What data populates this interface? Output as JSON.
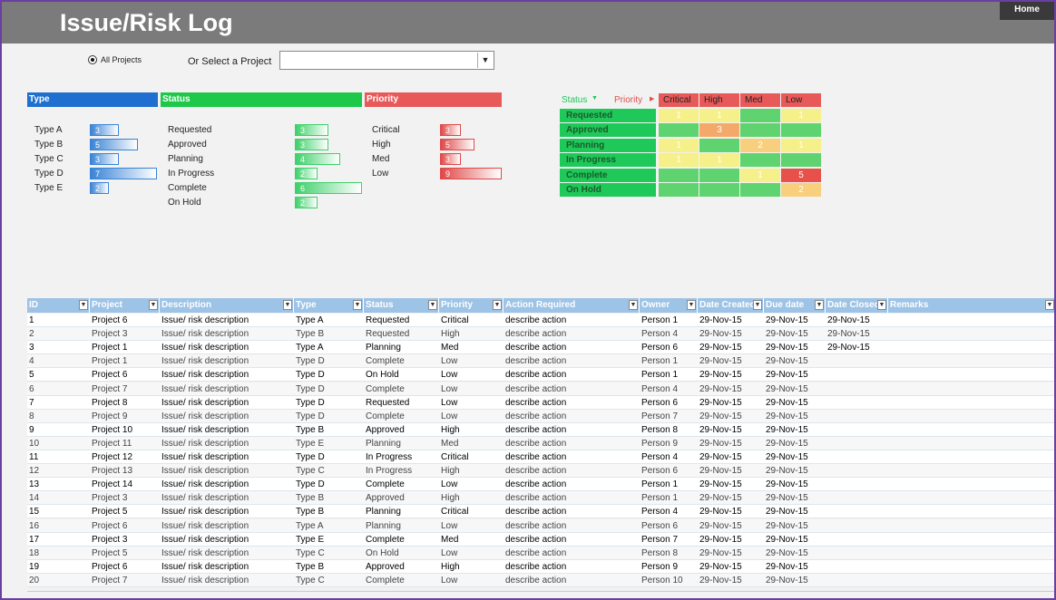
{
  "header": {
    "title": "Issue/Risk Log",
    "home_button": "Home"
  },
  "filter": {
    "all_projects": "All Projects",
    "select_label": "Or Select a Project"
  },
  "summary": {
    "type": {
      "title": "Type",
      "items": [
        {
          "label": "Type A",
          "count": 3
        },
        {
          "label": "Type B",
          "count": 5
        },
        {
          "label": "Type C",
          "count": 3
        },
        {
          "label": "Type D",
          "count": 7
        },
        {
          "label": "Type E",
          "count": 2
        }
      ]
    },
    "status": {
      "title": "Status",
      "items": [
        {
          "label": "Requested",
          "count": 3
        },
        {
          "label": "Approved",
          "count": 3
        },
        {
          "label": "Planning",
          "count": 4
        },
        {
          "label": "In Progress",
          "count": 2
        },
        {
          "label": "Complete",
          "count": 6
        },
        {
          "label": "On Hold",
          "count": 2
        }
      ]
    },
    "priority": {
      "title": "Priority",
      "items": [
        {
          "label": "Critical",
          "count": 3
        },
        {
          "label": "High",
          "count": 5
        },
        {
          "label": "Med",
          "count": 3
        },
        {
          "label": "Low",
          "count": 9
        }
      ]
    }
  },
  "matrix": {
    "status_label": "Status",
    "priority_label": "Priority",
    "columns": [
      "Critical",
      "High",
      "Med",
      "Low"
    ],
    "rows": [
      {
        "label": "Requested",
        "values": [
          1,
          1,
          null,
          1
        ]
      },
      {
        "label": "Approved",
        "values": [
          null,
          3,
          null,
          null
        ]
      },
      {
        "label": "Planning",
        "values": [
          1,
          null,
          2,
          1
        ]
      },
      {
        "label": "In Progress",
        "values": [
          1,
          1,
          null,
          null
        ]
      },
      {
        "label": "Complete",
        "values": [
          null,
          null,
          1,
          5
        ]
      },
      {
        "label": "On Hold",
        "values": [
          null,
          null,
          null,
          2
        ]
      }
    ]
  },
  "table": {
    "columns": [
      "ID",
      "Project",
      "Description",
      "Type",
      "Status",
      "Priority",
      "Action Required",
      "Owner",
      "Date Created",
      "Due date",
      "Date Closed",
      "Remarks"
    ],
    "rows": [
      [
        1,
        "Project 6",
        "Issue/ risk description",
        "Type A",
        "Requested",
        "Critical",
        "describe action",
        "Person 1",
        "29-Nov-15",
        "29-Nov-15",
        "29-Nov-15"
      ],
      [
        2,
        "Project 3",
        "Issue/ risk description",
        "Type B",
        "Requested",
        "High",
        "describe action",
        "Person 4",
        "29-Nov-15",
        "29-Nov-15",
        "29-Nov-15"
      ],
      [
        3,
        "Project 1",
        "Issue/ risk description",
        "Type A",
        "Planning",
        "Med",
        "describe action",
        "Person 6",
        "29-Nov-15",
        "29-Nov-15",
        "29-Nov-15"
      ],
      [
        4,
        "Project 1",
        "Issue/ risk description",
        "Type D",
        "Complete",
        "Low",
        "describe action",
        "Person 1",
        "29-Nov-15",
        "29-Nov-15",
        null
      ],
      [
        5,
        "Project 6",
        "Issue/ risk description",
        "Type D",
        "On Hold",
        "Low",
        "describe action",
        "Person 1",
        "29-Nov-15",
        "29-Nov-15",
        null
      ],
      [
        6,
        "Project 7",
        "Issue/ risk description",
        "Type D",
        "Complete",
        "Low",
        "describe action",
        "Person 4",
        "29-Nov-15",
        "29-Nov-15",
        null
      ],
      [
        7,
        "Project 8",
        "Issue/ risk description",
        "Type D",
        "Requested",
        "Low",
        "describe action",
        "Person 6",
        "29-Nov-15",
        "29-Nov-15",
        null
      ],
      [
        8,
        "Project 9",
        "Issue/ risk description",
        "Type D",
        "Complete",
        "Low",
        "describe action",
        "Person 7",
        "29-Nov-15",
        "29-Nov-15",
        null
      ],
      [
        9,
        "Project 10",
        "Issue/ risk description",
        "Type B",
        "Approved",
        "High",
        "describe action",
        "Person 8",
        "29-Nov-15",
        "29-Nov-15",
        null
      ],
      [
        10,
        "Project 11",
        "Issue/ risk description",
        "Type E",
        "Planning",
        "Med",
        "describe action",
        "Person 9",
        "29-Nov-15",
        "29-Nov-15",
        null
      ],
      [
        11,
        "Project 12",
        "Issue/ risk description",
        "Type D",
        "In Progress",
        "Critical",
        "describe action",
        "Person 4",
        "29-Nov-15",
        "29-Nov-15",
        null
      ],
      [
        12,
        "Project 13",
        "Issue/ risk description",
        "Type C",
        "In Progress",
        "High",
        "describe action",
        "Person 6",
        "29-Nov-15",
        "29-Nov-15",
        null
      ],
      [
        13,
        "Project 14",
        "Issue/ risk description",
        "Type D",
        "Complete",
        "Low",
        "describe action",
        "Person 1",
        "29-Nov-15",
        "29-Nov-15",
        null
      ],
      [
        14,
        "Project 3",
        "Issue/ risk description",
        "Type B",
        "Approved",
        "High",
        "describe action",
        "Person 1",
        "29-Nov-15",
        "29-Nov-15",
        null
      ],
      [
        15,
        "Project 5",
        "Issue/ risk description",
        "Type B",
        "Planning",
        "Critical",
        "describe action",
        "Person 4",
        "29-Nov-15",
        "29-Nov-15",
        null
      ],
      [
        16,
        "Project 6",
        "Issue/ risk description",
        "Type A",
        "Planning",
        "Low",
        "describe action",
        "Person 6",
        "29-Nov-15",
        "29-Nov-15",
        null
      ],
      [
        17,
        "Project 3",
        "Issue/ risk description",
        "Type E",
        "Complete",
        "Med",
        "describe action",
        "Person 7",
        "29-Nov-15",
        "29-Nov-15",
        null
      ],
      [
        18,
        "Project 5",
        "Issue/ risk description",
        "Type C",
        "On Hold",
        "Low",
        "describe action",
        "Person 8",
        "29-Nov-15",
        "29-Nov-15",
        null
      ],
      [
        19,
        "Project 6",
        "Issue/ risk description",
        "Type B",
        "Approved",
        "High",
        "describe action",
        "Person 9",
        "29-Nov-15",
        "29-Nov-15",
        null
      ],
      [
        20,
        "Project 7",
        "Issue/ risk description",
        "Type C",
        "Complete",
        "Low",
        "describe action",
        "Person 10",
        "29-Nov-15",
        "29-Nov-15",
        null
      ]
    ]
  }
}
